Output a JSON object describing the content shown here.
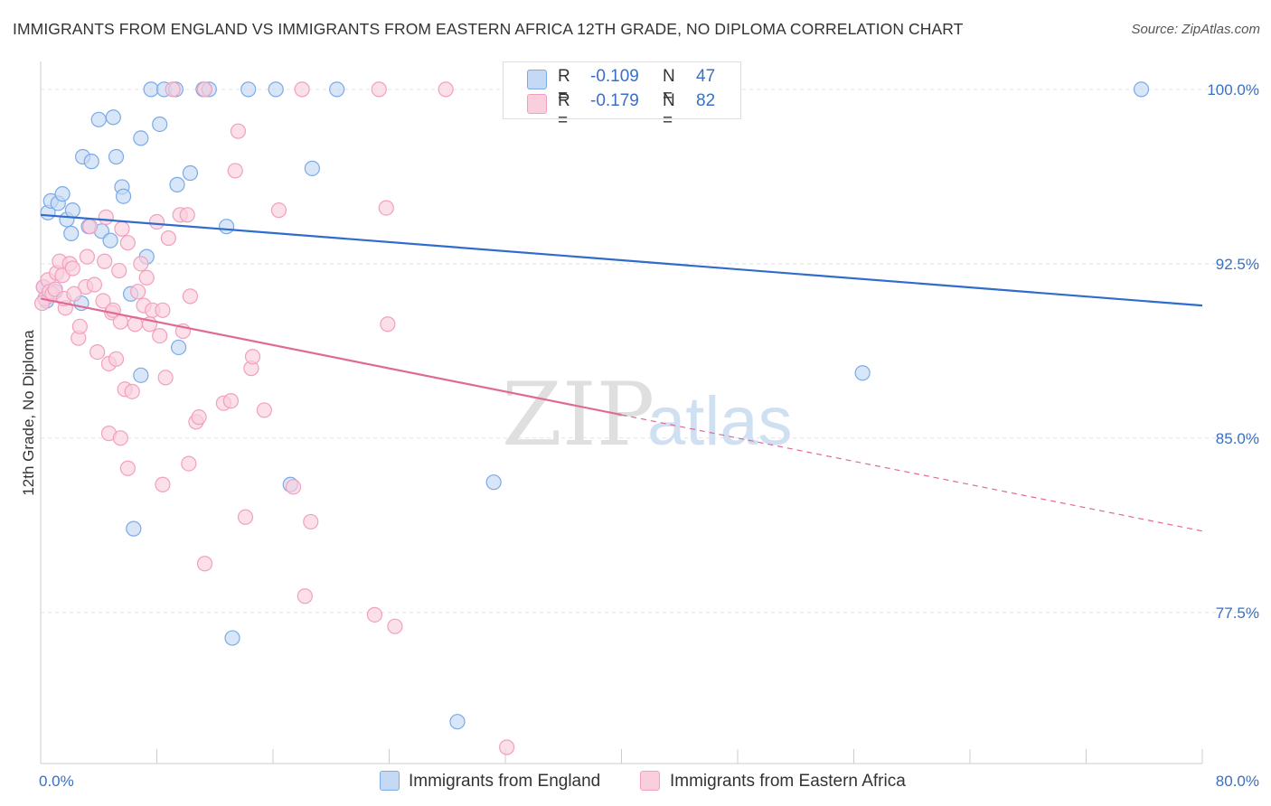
{
  "title": "IMMIGRANTS FROM ENGLAND VS IMMIGRANTS FROM EASTERN AFRICA 12TH GRADE, NO DIPLOMA CORRELATION CHART",
  "source": "Source: ZipAtlas.com",
  "watermark": {
    "zip": "ZIP",
    "atlas": "atlas"
  },
  "legend_box": {
    "rows": [
      {
        "r_label": "R =",
        "r_value": "-0.109",
        "n_label": "N =",
        "n_value": "47"
      },
      {
        "r_label": "R =",
        "r_value": "-0.179",
        "n_label": "N =",
        "n_value": "82"
      }
    ]
  },
  "chart_data": {
    "type": "scatter",
    "xlabel": "",
    "ylabel": "12th Grade, No Diploma",
    "xlim": [
      0,
      80
    ],
    "ylim": [
      71.0,
      101.2
    ],
    "x_tick_labels": [
      {
        "value": 0,
        "label": "0.0%"
      },
      {
        "value": 80,
        "label": "80.0%"
      }
    ],
    "y_tick_labels": [
      {
        "value": 100.0,
        "label": "100.0%"
      },
      {
        "value": 92.5,
        "label": "92.5%"
      },
      {
        "value": 85.0,
        "label": "85.0%"
      },
      {
        "value": 77.5,
        "label": "77.5%"
      }
    ],
    "grid": true,
    "series": [
      {
        "name": "Immigrants from England",
        "color": "#7aaae8",
        "fill": "#c5d9f5",
        "line_color": "#2f6ccb",
        "trend": {
          "x": [
            0,
            80
          ],
          "y": [
            94.6,
            90.7
          ],
          "dashed_from": null
        },
        "points": [
          [
            0.5,
            94.7
          ],
          [
            0.7,
            95.2
          ],
          [
            1.2,
            95.1
          ],
          [
            1.5,
            95.5
          ],
          [
            1.8,
            94.4
          ],
          [
            2.2,
            94.8
          ],
          [
            2.1,
            93.8
          ],
          [
            2.9,
            97.1
          ],
          [
            3.5,
            96.9
          ],
          [
            4.0,
            98.7
          ],
          [
            5.0,
            98.8
          ],
          [
            5.2,
            97.1
          ],
          [
            5.6,
            95.8
          ],
          [
            5.7,
            95.4
          ],
          [
            6.9,
            97.9
          ],
          [
            8.2,
            98.5
          ],
          [
            7.6,
            100.0
          ],
          [
            8.5,
            100.0
          ],
          [
            9.3,
            100.0
          ],
          [
            11.2,
            100.0
          ],
          [
            11.6,
            100.0
          ],
          [
            14.3,
            100.0
          ],
          [
            16.2,
            100.0
          ],
          [
            20.4,
            100.0
          ],
          [
            9.4,
            95.9
          ],
          [
            10.3,
            96.4
          ],
          [
            12.8,
            94.1
          ],
          [
            18.7,
            96.6
          ],
          [
            3.3,
            94.1
          ],
          [
            4.2,
            93.9
          ],
          [
            4.8,
            93.5
          ],
          [
            7.3,
            92.8
          ],
          [
            6.2,
            91.2
          ],
          [
            2.8,
            90.8
          ],
          [
            0.2,
            91.5
          ],
          [
            0.4,
            90.9
          ],
          [
            9.5,
            88.9
          ],
          [
            6.9,
            87.7
          ],
          [
            17.2,
            83.0
          ],
          [
            31.2,
            83.1
          ],
          [
            6.4,
            81.1
          ],
          [
            13.2,
            76.4
          ],
          [
            28.7,
            72.8
          ],
          [
            56.6,
            87.8
          ],
          [
            75.8,
            100.0
          ],
          [
            0.3,
            91.0
          ],
          [
            1.0,
            91.3
          ]
        ]
      },
      {
        "name": "Immigrants from Eastern Africa",
        "color": "#f2a0bc",
        "fill": "#f9cfdd",
        "line_color": "#e06a96",
        "trend": {
          "x": [
            0,
            80
          ],
          "y": [
            91.0,
            81.0
          ],
          "dashed_from": 40
        },
        "points": [
          [
            0.2,
            91.5
          ],
          [
            0.3,
            91.0
          ],
          [
            0.5,
            91.8
          ],
          [
            0.6,
            91.3
          ],
          [
            0.8,
            91.2
          ],
          [
            1.0,
            91.4
          ],
          [
            1.1,
            92.1
          ],
          [
            1.3,
            92.6
          ],
          [
            1.5,
            92.0
          ],
          [
            1.7,
            90.6
          ],
          [
            2.0,
            92.5
          ],
          [
            2.2,
            92.3
          ],
          [
            2.6,
            89.3
          ],
          [
            2.7,
            89.8
          ],
          [
            3.1,
            91.5
          ],
          [
            3.2,
            92.8
          ],
          [
            3.4,
            94.1
          ],
          [
            3.7,
            91.6
          ],
          [
            3.9,
            88.7
          ],
          [
            4.3,
            90.9
          ],
          [
            4.4,
            92.6
          ],
          [
            4.5,
            94.5
          ],
          [
            4.7,
            88.2
          ],
          [
            4.9,
            90.4
          ],
          [
            5.0,
            90.5
          ],
          [
            5.2,
            88.4
          ],
          [
            5.4,
            92.2
          ],
          [
            5.5,
            90.0
          ],
          [
            5.6,
            94.0
          ],
          [
            5.8,
            87.1
          ],
          [
            6.0,
            93.4
          ],
          [
            6.3,
            87.0
          ],
          [
            6.5,
            89.9
          ],
          [
            6.7,
            91.3
          ],
          [
            6.9,
            92.5
          ],
          [
            7.1,
            90.7
          ],
          [
            7.3,
            91.9
          ],
          [
            7.5,
            89.9
          ],
          [
            7.7,
            90.5
          ],
          [
            8.0,
            94.3
          ],
          [
            8.2,
            89.4
          ],
          [
            8.4,
            90.5
          ],
          [
            8.6,
            87.6
          ],
          [
            8.8,
            93.6
          ],
          [
            9.1,
            100.0
          ],
          [
            9.6,
            94.6
          ],
          [
            9.8,
            89.6
          ],
          [
            10.1,
            94.6
          ],
          [
            10.3,
            91.1
          ],
          [
            10.7,
            85.7
          ],
          [
            10.9,
            85.9
          ],
          [
            11.3,
            100.0
          ],
          [
            12.6,
            86.5
          ],
          [
            13.1,
            86.6
          ],
          [
            13.4,
            96.5
          ],
          [
            13.6,
            98.2
          ],
          [
            14.1,
            81.6
          ],
          [
            14.5,
            88.0
          ],
          [
            14.6,
            88.5
          ],
          [
            15.4,
            86.2
          ],
          [
            16.4,
            94.8
          ],
          [
            17.4,
            82.9
          ],
          [
            18.0,
            100.0
          ],
          [
            18.6,
            81.4
          ],
          [
            18.2,
            78.2
          ],
          [
            23.0,
            77.4
          ],
          [
            23.3,
            100.0
          ],
          [
            23.8,
            94.9
          ],
          [
            23.9,
            89.9
          ],
          [
            24.4,
            76.9
          ],
          [
            27.9,
            100.0
          ],
          [
            32.1,
            71.7
          ],
          [
            6.0,
            83.7
          ],
          [
            8.4,
            83.0
          ],
          [
            10.2,
            83.9
          ],
          [
            11.3,
            79.6
          ],
          [
            4.7,
            85.2
          ],
          [
            5.5,
            85.0
          ],
          [
            1.6,
            91.0
          ],
          [
            0.1,
            90.8
          ],
          [
            2.3,
            91.2
          ],
          [
            32.4,
            100.0
          ]
        ]
      }
    ]
  },
  "bottom_legend": [
    {
      "label": "Immigrants from England"
    },
    {
      "label": "Immigrants from Eastern Africa"
    }
  ]
}
